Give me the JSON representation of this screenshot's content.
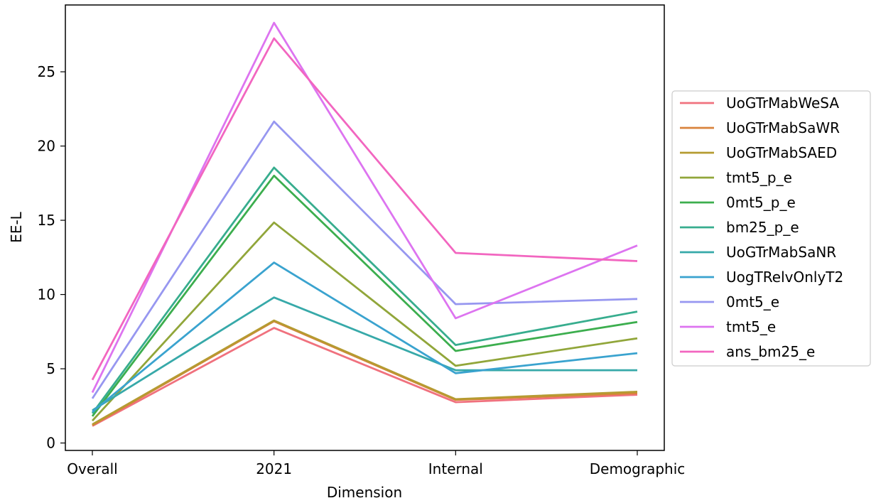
{
  "chart_data": {
    "type": "line",
    "xlabel": "Dimension",
    "ylabel": "EE-L",
    "categories": [
      "Overall",
      "2021",
      "Internal",
      "Demographic"
    ],
    "ylim": [
      -0.5,
      29.5
    ],
    "yticks": [
      0,
      5,
      10,
      15,
      20,
      25
    ],
    "grid": false,
    "legend_position": "right",
    "series": [
      {
        "name": "UoGTrMabWeSA",
        "color": "#f0717e",
        "values": [
          1.15,
          7.75,
          2.75,
          3.25
        ]
      },
      {
        "name": "UoGTrMabSaWR",
        "color": "#d9833c",
        "values": [
          1.2,
          8.2,
          2.9,
          3.35
        ]
      },
      {
        "name": "UoGTrMabSAED",
        "color": "#b59b31",
        "values": [
          1.25,
          8.25,
          2.95,
          3.45
        ]
      },
      {
        "name": "tmt5_p_e",
        "color": "#91a63a",
        "values": [
          1.5,
          14.85,
          5.2,
          7.05
        ]
      },
      {
        "name": "0mt5_p_e",
        "color": "#3cae4e",
        "values": [
          1.8,
          18.0,
          6.2,
          8.15
        ]
      },
      {
        "name": "bm25_p_e",
        "color": "#37ad8e",
        "values": [
          2.0,
          18.55,
          6.6,
          8.85
        ]
      },
      {
        "name": "UoGTrMabSaNR",
        "color": "#37a9a9",
        "values": [
          2.2,
          9.8,
          4.9,
          4.9
        ]
      },
      {
        "name": "UogTRelvOnlyT2",
        "color": "#3aa3cf",
        "values": [
          2.1,
          12.15,
          4.7,
          6.05
        ]
      },
      {
        "name": "0mt5_e",
        "color": "#9797f0",
        "values": [
          3.0,
          21.65,
          9.35,
          9.7
        ]
      },
      {
        "name": "tmt5_e",
        "color": "#dd74f0",
        "values": [
          3.4,
          28.3,
          8.4,
          13.3
        ]
      },
      {
        "name": "ans_bm25_e",
        "color": "#f266c0",
        "values": [
          4.25,
          27.25,
          12.8,
          12.25
        ]
      }
    ]
  }
}
